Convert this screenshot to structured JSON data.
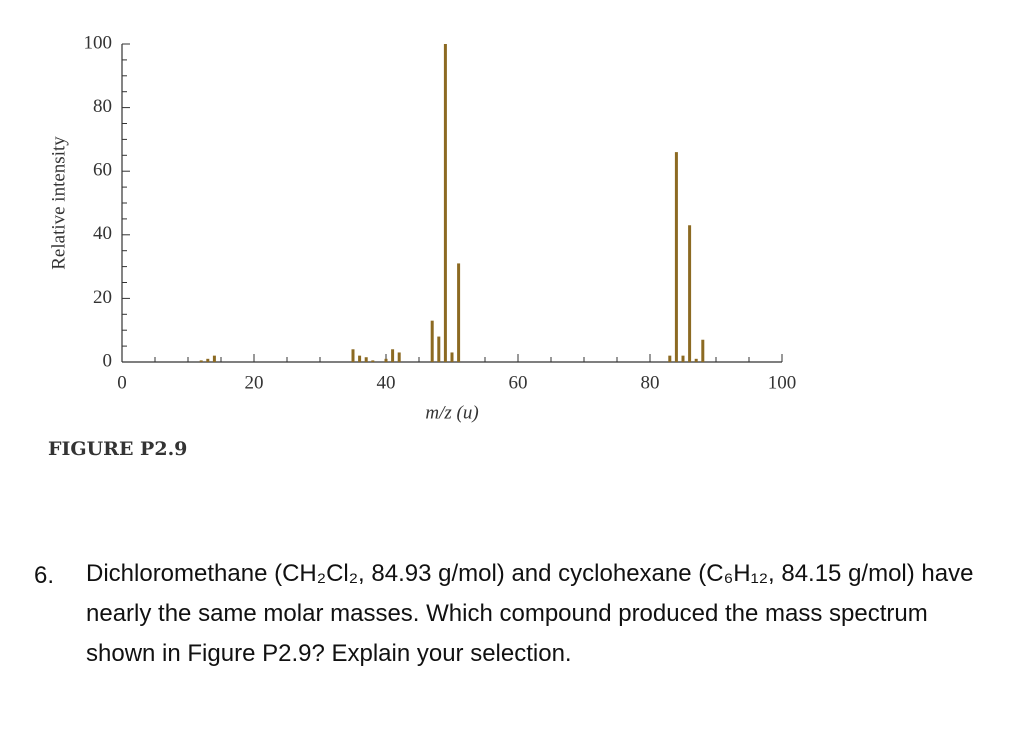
{
  "chart_data": {
    "type": "bar",
    "x": [
      12,
      13,
      14,
      35,
      36,
      37,
      38,
      40,
      41,
      42,
      47,
      48,
      49,
      50,
      51,
      83,
      84,
      85,
      86,
      87,
      88
    ],
    "values": [
      0.5,
      1,
      2,
      4,
      2,
      1.5,
      0.5,
      1,
      4,
      3,
      13,
      8,
      100,
      3,
      31,
      2,
      66,
      2,
      43,
      1,
      7
    ],
    "color": "#8c6a22",
    "xlabel": "m/z (u)",
    "ylabel": "Relative intensity",
    "xlim": [
      0,
      100
    ],
    "xticks": [
      0,
      20,
      40,
      60,
      80,
      100
    ],
    "xticks_minor": [
      5,
      10,
      15,
      25,
      30,
      35,
      45,
      50,
      55,
      65,
      70,
      75,
      85,
      90,
      95
    ],
    "ylim": [
      0,
      100
    ],
    "yticks": [
      0,
      20,
      40,
      60,
      80,
      100
    ],
    "yticks_minor": [
      5,
      10,
      15,
      25,
      30,
      35,
      45,
      50,
      55,
      65,
      70,
      75,
      85,
      90,
      95
    ],
    "grid": false
  },
  "figure_label": "FIGURE P2.9",
  "question": {
    "number": "6.",
    "text": "Dichloromethane (CH₂Cl₂, 84.93 g/mol) and cyclohexane (C₆H₁₂, 84.15 g/mol) have nearly the same molar masses. Which compound produced the mass spectrum shown in Figure P2.9? Explain your selection."
  }
}
